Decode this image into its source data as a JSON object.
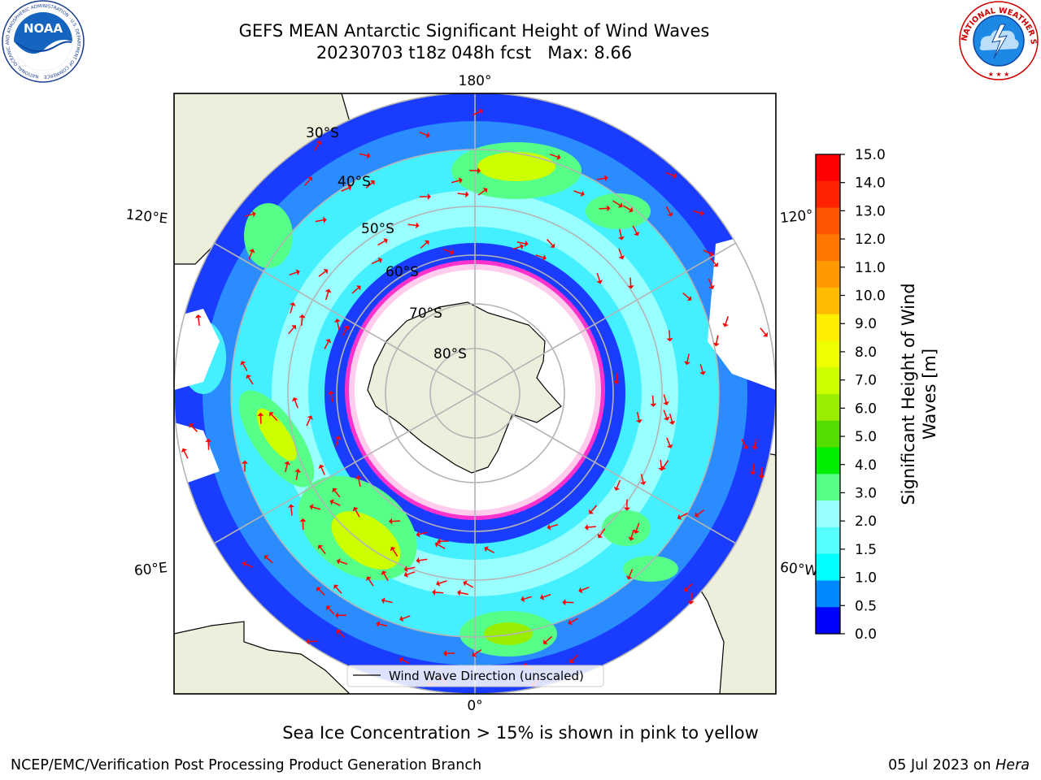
{
  "header": {
    "title": "GEFS MEAN Antarctic Significant Height of Wind Waves",
    "subtitle": "20230703 t18z 048h fcst   Max: 8.66",
    "left_logo": {
      "icon": "noaa-logo-icon",
      "text": "NOAA",
      "ring_text": "NATIONAL OCEANIC AND ATMOSPHERIC ADMINISTRATION · U.S. DEPARTMENT OF COMMERCE"
    },
    "right_logo": {
      "icon": "nws-logo-icon",
      "ring_text": "NATIONAL WEATHER SERVICE"
    }
  },
  "map": {
    "projection": "south-polar-stereographic",
    "longitude_labels": [
      "180°",
      "120°E",
      "120°",
      "60°E",
      "60°W",
      "0°"
    ],
    "latitude_labels": [
      "30°S",
      "40°S",
      "50°S",
      "60°S",
      "70°S",
      "80°S"
    ],
    "legend_label": "Wind Wave Direction (unscaled)",
    "colors": {
      "land": "#eeeedd",
      "ocean_fill": "#ffffff",
      "grid": "#b4b4b4",
      "arrow": "#ff0000",
      "ice": "#ff33cc"
    }
  },
  "colorbar": {
    "label": "Significant Height of Wind Waves [m]",
    "label_line1": "Significant Height of Wind",
    "label_line2": "Waves [m]",
    "ticks": [
      "15.0",
      "14.0",
      "13.0",
      "12.0",
      "11.0",
      "10.0",
      "9.0",
      "8.0",
      "7.0",
      "6.0",
      "5.0",
      "4.0",
      "3.0",
      "2.0",
      "1.5",
      "1.0",
      "0.5",
      "0.0"
    ],
    "colors_top_to_bottom": [
      "#ff0000",
      "#ff2200",
      "#ff5500",
      "#ff7700",
      "#ff9900",
      "#ffbb00",
      "#ffee00",
      "#eeff00",
      "#ccff00",
      "#99ee00",
      "#55dd00",
      "#00ee00",
      "#55ff88",
      "#99ffff",
      "#55ffff",
      "#00ffff",
      "#0088ff",
      "#0000ff"
    ]
  },
  "footer": {
    "note": "Sea Ice Concentration > 15% is shown in pink to yellow",
    "left": "NCEP/EMC/Verification Post Processing Product Generation Branch",
    "right_date": "05 Jul 2023 on",
    "right_host": "Hera"
  }
}
